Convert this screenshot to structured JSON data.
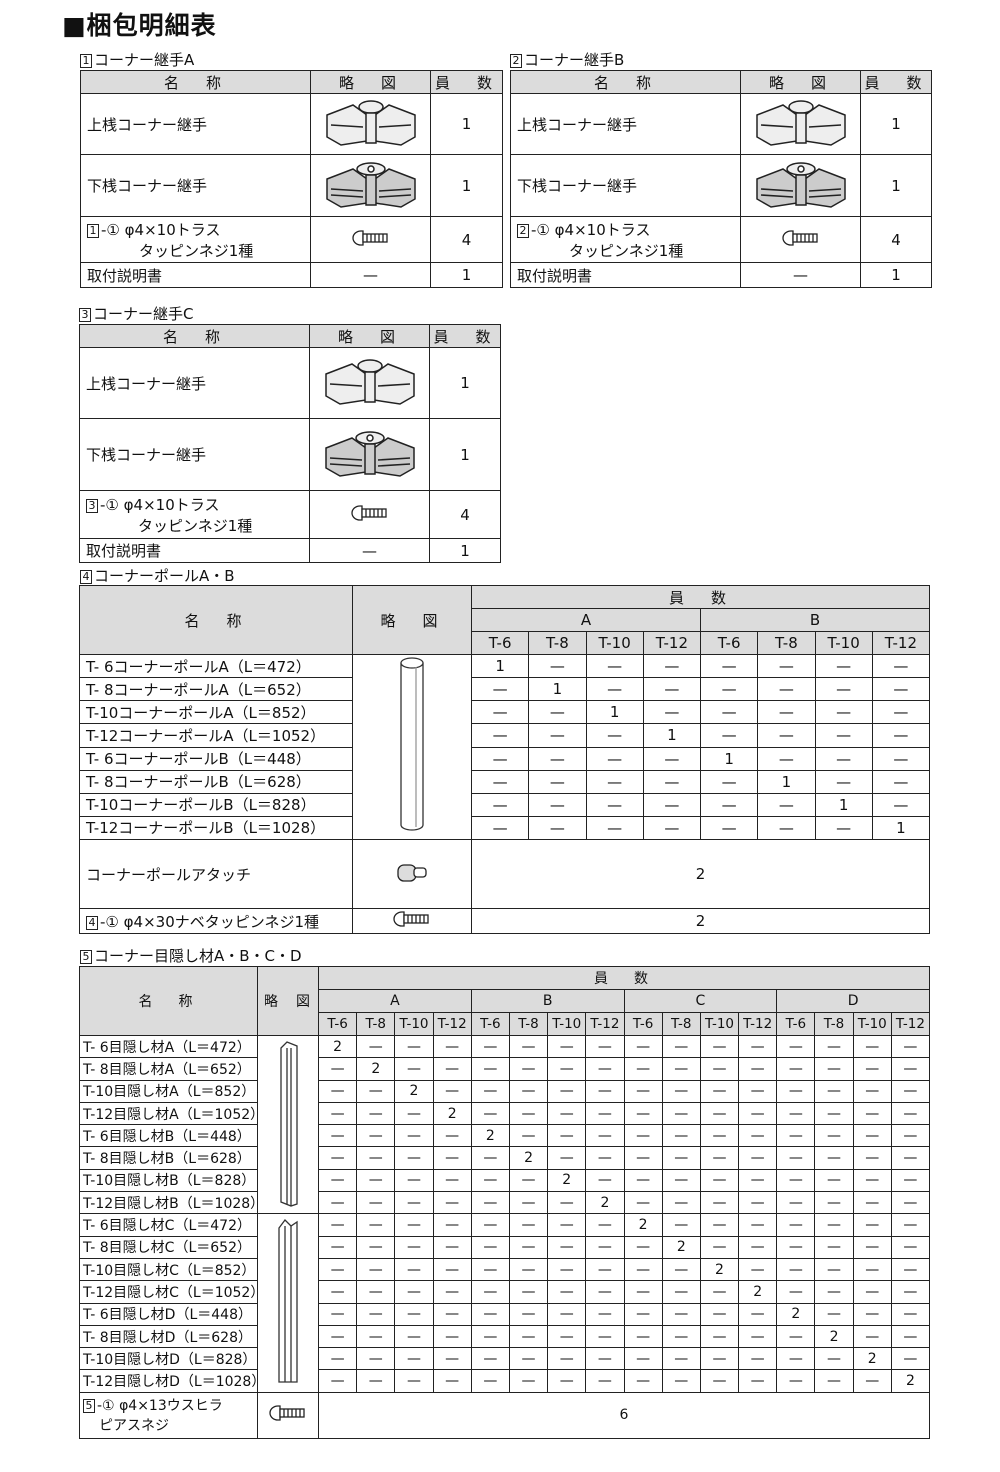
{
  "title": "■梱包明細表",
  "headers": {
    "name": "名　称",
    "pic": "略　図",
    "qty": "員　数"
  },
  "small_tables": [
    {
      "number": "1",
      "title": "コーナー継手A",
      "rows": [
        {
          "name": "上桟コーナー継手",
          "icon": "corner-joint-upper-icon",
          "qty": "1"
        },
        {
          "name": "下桟コーナー継手",
          "icon": "corner-joint-lower-icon",
          "qty": "1"
        },
        {
          "prefix": "1",
          "suffix": "-①",
          "name": "φ4×10トラス",
          "name2": "タッピンネジ1種",
          "icon": "screw-icon",
          "qty": "4"
        },
        {
          "name": "取付説明書",
          "pic_text": "—",
          "qty": "1"
        }
      ]
    },
    {
      "number": "2",
      "title": "コーナー継手B",
      "rows": [
        {
          "name": "上桟コーナー継手",
          "icon": "corner-joint-upper-icon",
          "qty": "1"
        },
        {
          "name": "下桟コーナー継手",
          "icon": "corner-joint-lower-icon",
          "qty": "1"
        },
        {
          "prefix": "2",
          "suffix": "-①",
          "name": "φ4×10トラス",
          "name2": "タッピンネジ1種",
          "icon": "screw-icon",
          "qty": "4"
        },
        {
          "name": "取付説明書",
          "pic_text": "—",
          "qty": "1"
        }
      ]
    },
    {
      "number": "3",
      "title": "コーナー継手C",
      "rows": [
        {
          "name": "上桟コーナー継手",
          "icon": "corner-joint-upper-icon",
          "qty": "1"
        },
        {
          "name": "下桟コーナー継手",
          "icon": "corner-joint-lower-icon",
          "qty": "1"
        },
        {
          "prefix": "3",
          "suffix": "-①",
          "name": "φ4×10トラス",
          "name2": "タッピンネジ1種",
          "icon": "screw-icon",
          "qty": "4"
        },
        {
          "name": "取付説明書",
          "pic_text": "—",
          "qty": "1"
        }
      ]
    }
  ],
  "pole_table": {
    "number": "4",
    "title": "コーナーポールA・B",
    "groups": [
      "A",
      "B"
    ],
    "sizes": [
      "T-6",
      "T-8",
      "T-10",
      "T-12"
    ],
    "icon": "corner-pole-icon",
    "rows": [
      {
        "name": "T- 6コーナーポールA（L＝472）",
        "values": [
          "1",
          "—",
          "—",
          "—",
          "—",
          "—",
          "—",
          "—"
        ]
      },
      {
        "name": "T- 8コーナーポールA（L＝652）",
        "values": [
          "—",
          "1",
          "—",
          "—",
          "—",
          "—",
          "—",
          "—"
        ]
      },
      {
        "name": "T-10コーナーポールA（L＝852）",
        "values": [
          "—",
          "—",
          "1",
          "—",
          "—",
          "—",
          "—",
          "—"
        ]
      },
      {
        "name": "T-12コーナーポールA（L＝1052）",
        "values": [
          "—",
          "—",
          "—",
          "1",
          "—",
          "—",
          "—",
          "—"
        ]
      },
      {
        "name": "T- 6コーナーポールB（L＝448）",
        "values": [
          "—",
          "—",
          "—",
          "—",
          "1",
          "—",
          "—",
          "—"
        ]
      },
      {
        "name": "T- 8コーナーポールB（L＝628）",
        "values": [
          "—",
          "—",
          "—",
          "—",
          "—",
          "1",
          "—",
          "—"
        ]
      },
      {
        "name": "T-10コーナーポールB（L＝828）",
        "values": [
          "—",
          "—",
          "—",
          "—",
          "—",
          "—",
          "1",
          "—"
        ]
      },
      {
        "name": "T-12コーナーポールB（L＝1028）",
        "values": [
          "—",
          "—",
          "—",
          "—",
          "—",
          "—",
          "—",
          "1"
        ]
      }
    ],
    "extra_rows": [
      {
        "name": "コーナーポールアタッチ",
        "icon": "pole-attachment-icon",
        "qty": "2"
      },
      {
        "prefix": "4",
        "suffix": "-①",
        "name": "φ4×30ナベタッピンネジ1種",
        "icon": "screw-icon",
        "qty": "2"
      }
    ]
  },
  "cover_table": {
    "number": "5",
    "title": "コーナー目隠し材A・B・C・D",
    "groups": [
      "A",
      "B",
      "C",
      "D"
    ],
    "sizes": [
      "T-6",
      "T-8",
      "T-10",
      "T-12"
    ],
    "icons": [
      "cover-strip-ab-icon",
      "cover-strip-cd-icon"
    ],
    "rows": [
      {
        "name": "T- 6目隠し材A（L＝472）"
      },
      {
        "name": "T- 8目隠し材A（L＝652）"
      },
      {
        "name": "T-10目隠し材A（L＝852）"
      },
      {
        "name": "T-12目隠し材A（L＝1052）"
      },
      {
        "name": "T- 6目隠し材B（L＝448）"
      },
      {
        "name": "T- 8目隠し材B（L＝628）"
      },
      {
        "name": "T-10目隠し材B（L＝828）"
      },
      {
        "name": "T-12目隠し材B（L＝1028）"
      },
      {
        "name": "T- 6目隠し材C（L＝472）"
      },
      {
        "name": "T- 8目隠し材C（L＝652）"
      },
      {
        "name": "T-10目隠し材C（L＝852）"
      },
      {
        "name": "T-12目隠し材C（L＝1052）"
      },
      {
        "name": "T- 6目隠し材D（L＝448）"
      },
      {
        "name": "T- 8目隠し材D（L＝628）"
      },
      {
        "name": "T-10目隠し材D（L＝828）"
      },
      {
        "name": "T-12目隠し材D（L＝1028）"
      }
    ],
    "quantity_per_item": "2",
    "empty_value": "—",
    "extra_row": {
      "prefix": "5",
      "suffix": "-①",
      "name": "φ4×13ウスヒラ",
      "name2": "ピアスネジ",
      "icon": "screw-icon",
      "qty": "6"
    }
  }
}
